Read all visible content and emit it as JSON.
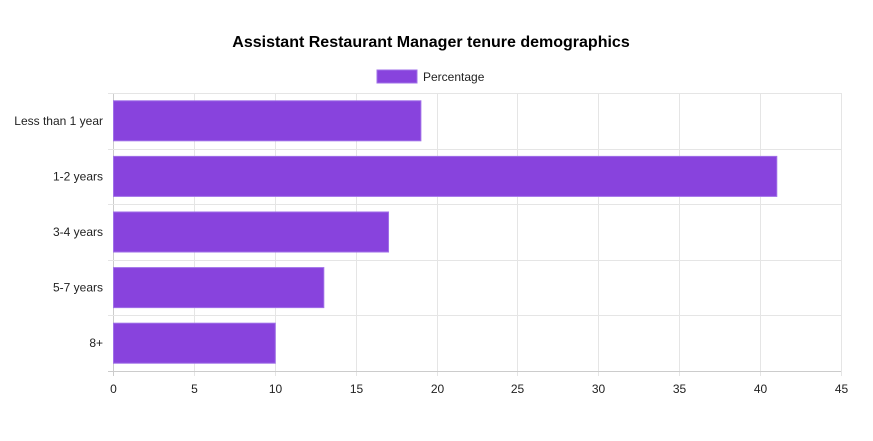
{
  "chart_data": {
    "type": "bar",
    "orientation": "horizontal",
    "title": "Assistant Restaurant Manager tenure demographics",
    "categories": [
      "Less than 1 year",
      "1-2 years",
      "3-4 years",
      "5-7 years",
      "8+"
    ],
    "series": [
      {
        "name": "Percentage",
        "values": [
          19,
          41,
          17,
          13,
          10
        ]
      }
    ],
    "xlim": [
      0,
      45
    ],
    "x_ticks": [
      0,
      5,
      10,
      15,
      20,
      25,
      30,
      35,
      40,
      45
    ],
    "grid": true,
    "legend_position": "top-center",
    "colors": {
      "bar_fill": "#8843dd",
      "bar_border": "#a070e8"
    }
  }
}
